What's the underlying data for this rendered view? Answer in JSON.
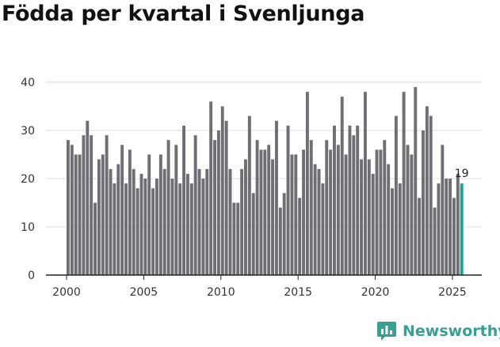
{
  "title": "Födda per kvartal i Svenljunga",
  "brand": "Newsworthy",
  "colors": {
    "bar": "#6f6e73",
    "highlight": "#1aa095",
    "axis": "#222222",
    "grid": "#dedede",
    "brand": "#3a9e92"
  },
  "chart_data": {
    "type": "bar",
    "title": "Födda per kvartal i Svenljunga",
    "xlabel": "",
    "ylabel": "",
    "ylim": [
      0,
      40
    ],
    "yticks": [
      0,
      10,
      20,
      30,
      40
    ],
    "xticks": [
      "2000",
      "2005",
      "2010",
      "2015",
      "2020",
      "2025"
    ],
    "first_period": "2000 Q1",
    "grid": true,
    "highlight_last": true,
    "last_value_label": "19",
    "categories": [
      "2000Q1",
      "2000Q2",
      "2000Q3",
      "2000Q4",
      "2001Q1",
      "2001Q2",
      "2001Q3",
      "2001Q4",
      "2002Q1",
      "2002Q2",
      "2002Q3",
      "2002Q4",
      "2003Q1",
      "2003Q2",
      "2003Q3",
      "2003Q4",
      "2004Q1",
      "2004Q2",
      "2004Q3",
      "2004Q4",
      "2005Q1",
      "2005Q2",
      "2005Q3",
      "2005Q4",
      "2006Q1",
      "2006Q2",
      "2006Q3",
      "2006Q4",
      "2007Q1",
      "2007Q2",
      "2007Q3",
      "2007Q4",
      "2008Q1",
      "2008Q2",
      "2008Q3",
      "2008Q4",
      "2009Q1",
      "2009Q2",
      "2009Q3",
      "2009Q4",
      "2010Q1",
      "2010Q2",
      "2010Q3",
      "2010Q4",
      "2011Q1",
      "2011Q2",
      "2011Q3",
      "2011Q4",
      "2012Q1",
      "2012Q2",
      "2012Q3",
      "2012Q4",
      "2013Q1",
      "2013Q2",
      "2013Q3",
      "2013Q4",
      "2014Q1",
      "2014Q2",
      "2014Q3",
      "2014Q4",
      "2015Q1",
      "2015Q2",
      "2015Q3",
      "2015Q4",
      "2016Q1",
      "2016Q2",
      "2016Q3",
      "2016Q4",
      "2017Q1",
      "2017Q2",
      "2017Q3",
      "2017Q4",
      "2018Q1",
      "2018Q2",
      "2018Q3",
      "2018Q4",
      "2019Q1",
      "2019Q2",
      "2019Q3",
      "2019Q4",
      "2020Q1",
      "2020Q2",
      "2020Q3",
      "2020Q4",
      "2021Q1",
      "2021Q2",
      "2021Q3",
      "2021Q4",
      "2022Q1",
      "2022Q2",
      "2022Q3",
      "2022Q4",
      "2023Q1",
      "2023Q2",
      "2023Q3",
      "2023Q4",
      "2024Q1",
      "2024Q2",
      "2024Q3",
      "2024Q4",
      "2025Q1",
      "2025Q2",
      "2025Q3"
    ],
    "values": [
      28,
      27,
      25,
      25,
      29,
      32,
      29,
      15,
      24,
      25,
      29,
      22,
      19,
      23,
      27,
      19,
      26,
      22,
      18,
      21,
      20,
      25,
      18,
      20,
      25,
      22,
      28,
      20,
      27,
      19,
      31,
      21,
      19,
      29,
      22,
      20,
      22,
      36,
      28,
      30,
      35,
      32,
      22,
      15,
      15,
      22,
      24,
      33,
      17,
      28,
      26,
      26,
      27,
      24,
      32,
      14,
      17,
      31,
      25,
      25,
      16,
      26,
      38,
      28,
      23,
      22,
      19,
      28,
      26,
      31,
      27,
      37,
      25,
      31,
      29,
      31,
      24,
      38,
      24,
      21,
      26,
      26,
      28,
      23,
      18,
      33,
      19,
      38,
      27,
      25,
      39,
      16,
      30,
      35,
      33,
      14,
      19,
      27,
      20,
      20,
      16,
      21,
      19
    ]
  }
}
